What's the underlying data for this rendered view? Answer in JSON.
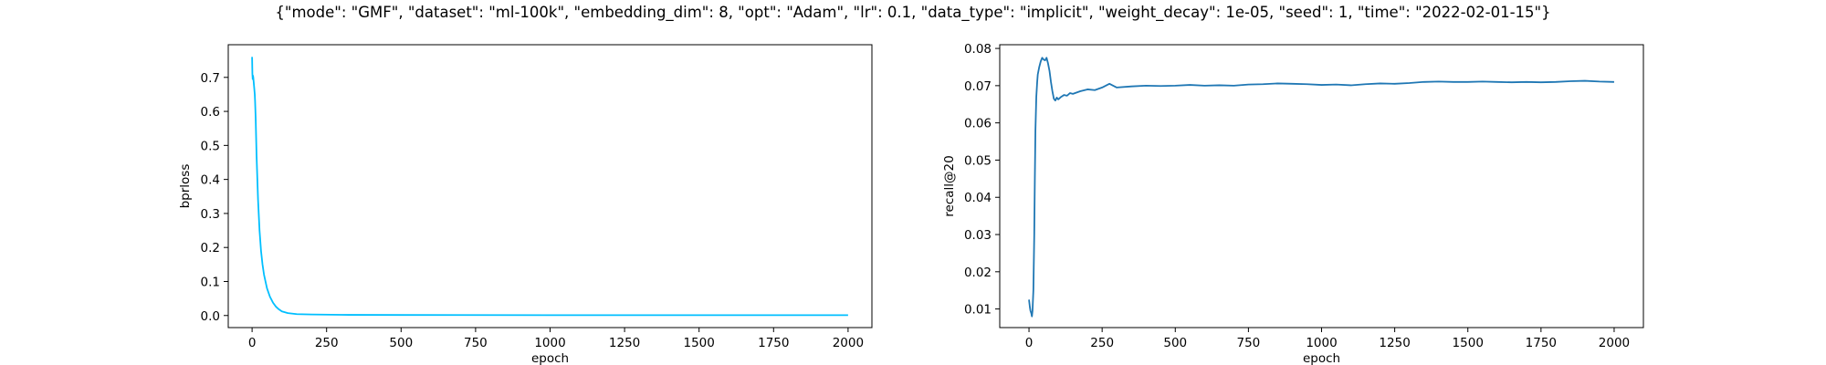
{
  "figure": {
    "title": "{\"mode\": \"GMF\", \"dataset\": \"ml-100k\", \"embedding_dim\": 8, \"opt\": \"Adam\", \"lr\": 0.1, \"data_type\": \"implicit\", \"weight_decay\": 1e-05, \"seed\": 1, \"time\": \"2022-02-01-15\"}"
  },
  "chart_data": [
    {
      "type": "line",
      "xlabel": "epoch",
      "ylabel": "bprloss",
      "xlim": [
        -80,
        2080
      ],
      "ylim": [
        -0.0355,
        0.796
      ],
      "xticks": [
        0,
        250,
        500,
        750,
        1000,
        1250,
        1500,
        1750,
        2000
      ],
      "yticks": [
        0.0,
        0.1,
        0.2,
        0.3,
        0.4,
        0.5,
        0.6,
        0.7
      ],
      "ytick_labels": [
        "0.0",
        "0.1",
        "0.2",
        "0.3",
        "0.4",
        "0.5",
        "0.6",
        "0.7"
      ],
      "grid": false,
      "color": "#00bfff",
      "series": [
        {
          "x": [
            0,
            1,
            2,
            3,
            4,
            5,
            6,
            7,
            8,
            9,
            10,
            12,
            15,
            20,
            25,
            30,
            35,
            40,
            50,
            60,
            70,
            80,
            90,
            100,
            120,
            150,
            200,
            300,
            500,
            1000,
            1500,
            2000
          ],
          "y": [
            0.76,
            0.71,
            0.695,
            0.705,
            0.7,
            0.69,
            0.68,
            0.67,
            0.66,
            0.65,
            0.63,
            0.58,
            0.47,
            0.34,
            0.25,
            0.19,
            0.15,
            0.12,
            0.08,
            0.055,
            0.038,
            0.026,
            0.018,
            0.012,
            0.007,
            0.004,
            0.003,
            0.002,
            0.0015,
            0.001,
            0.001,
            0.001
          ]
        }
      ]
    },
    {
      "type": "line",
      "xlabel": "epoch",
      "ylabel": "recall@20",
      "xlim": [
        -100,
        2100
      ],
      "ylim": [
        0.005,
        0.081
      ],
      "xticks": [
        0,
        250,
        500,
        750,
        1000,
        1250,
        1500,
        1750,
        2000
      ],
      "yticks": [
        0.01,
        0.02,
        0.03,
        0.04,
        0.05,
        0.06,
        0.07,
        0.08
      ],
      "ytick_labels": [
        "0.01",
        "0.02",
        "0.03",
        "0.04",
        "0.05",
        "0.06",
        "0.07",
        "0.08"
      ],
      "grid": false,
      "color": "#1f77b4",
      "series": [
        {
          "x": [
            0,
            3,
            5,
            8,
            10,
            12,
            15,
            18,
            20,
            22,
            25,
            28,
            30,
            35,
            40,
            45,
            50,
            55,
            60,
            65,
            70,
            75,
            80,
            85,
            90,
            95,
            100,
            110,
            120,
            130,
            140,
            150,
            175,
            200,
            225,
            250,
            275,
            300,
            350,
            400,
            450,
            500,
            550,
            600,
            650,
            700,
            750,
            800,
            850,
            900,
            950,
            1000,
            1050,
            1100,
            1150,
            1200,
            1250,
            1300,
            1350,
            1400,
            1450,
            1500,
            1550,
            1600,
            1650,
            1700,
            1750,
            1800,
            1850,
            1900,
            1950,
            2000
          ],
          "y": [
            0.0125,
            0.0105,
            0.0095,
            0.0088,
            0.008,
            0.0095,
            0.015,
            0.03,
            0.045,
            0.058,
            0.067,
            0.071,
            0.073,
            0.075,
            0.0765,
            0.0775,
            0.077,
            0.0768,
            0.0775,
            0.076,
            0.074,
            0.071,
            0.0685,
            0.0665,
            0.066,
            0.0668,
            0.0663,
            0.067,
            0.0675,
            0.0673,
            0.068,
            0.0678,
            0.0685,
            0.069,
            0.0688,
            0.0695,
            0.0705,
            0.0695,
            0.0698,
            0.07,
            0.0699,
            0.07,
            0.0702,
            0.07,
            0.0701,
            0.07,
            0.0703,
            0.0704,
            0.0706,
            0.0705,
            0.0704,
            0.0702,
            0.0703,
            0.0701,
            0.0704,
            0.0706,
            0.0705,
            0.0707,
            0.071,
            0.0711,
            0.071,
            0.071,
            0.0711,
            0.071,
            0.0709,
            0.071,
            0.0709,
            0.071,
            0.0712,
            0.0713,
            0.0711,
            0.071
          ]
        }
      ]
    }
  ]
}
